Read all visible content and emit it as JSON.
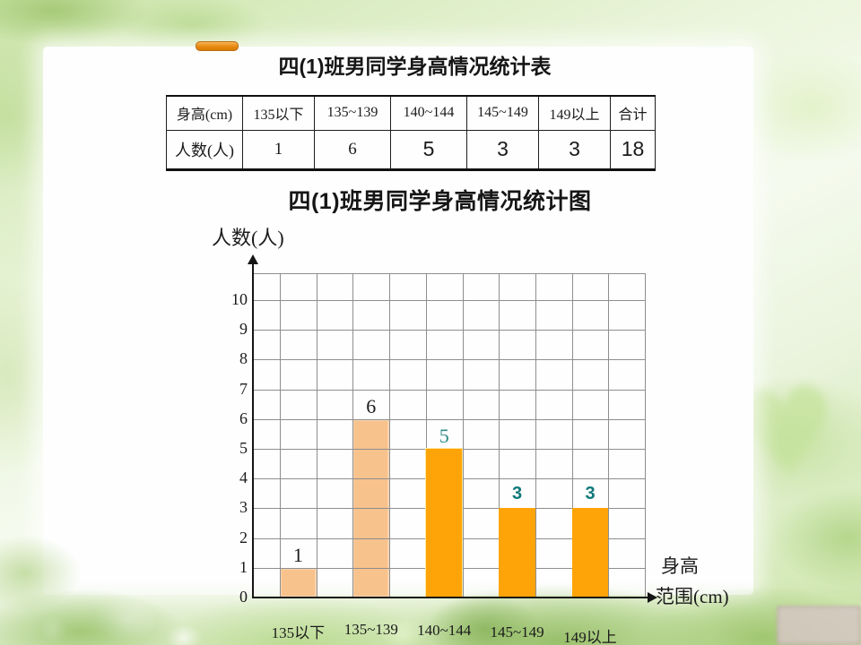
{
  "slide": {
    "table_title": "四(1)班男同学身高情况统计表",
    "chart_title": "四(1)班男同学身高情况统计图"
  },
  "table": {
    "columns": [
      "身高(cm)",
      "135以下",
      "135~139",
      "140~144",
      "145~149",
      "149以上",
      "合计"
    ],
    "row_label": "人数(人)",
    "values": [
      "1",
      "6",
      "5",
      "3",
      "3",
      "18"
    ],
    "value_styles": [
      "given",
      "given",
      "answer",
      "answer",
      "answer",
      "answer"
    ],
    "given_color": "#1b1b1b",
    "answer_color": "#1c3c87"
  },
  "chart_data": {
    "type": "bar",
    "title": "四(1)班男同学身高情况统计图",
    "ylabel": "人数(人)",
    "xlabel": "身高范围(cm)",
    "xlabel_lines": [
      "身高",
      "范围(cm)"
    ],
    "categories": [
      "135以下",
      "135~139",
      "140~144",
      "145~149",
      "149以上"
    ],
    "values": [
      1,
      6,
      5,
      3,
      3
    ],
    "ylim": [
      0,
      10
    ],
    "ytick_step": 1,
    "grid": true,
    "legend": false,
    "bar_colors": [
      "#f7c28c",
      "#f7c28c",
      "#ffa408",
      "#ffa408",
      "#ffa408"
    ],
    "bars_behind_grid": [
      true,
      true,
      false,
      false,
      false
    ],
    "bar_borders": [
      null,
      null,
      "#ffe9a0",
      null,
      null
    ],
    "value_label_colors": [
      "#1b1b1b",
      "#1b1b1b",
      "#2e8b8b",
      "#107878",
      "#107878"
    ],
    "value_label_bold": [
      false,
      false,
      false,
      true,
      true
    ]
  },
  "colors": {
    "axis": "#151515",
    "grid": "#8e8e8e",
    "accent_tab": "#e88a10"
  },
  "decor": {
    "heart_icon_glyph": "♥"
  }
}
